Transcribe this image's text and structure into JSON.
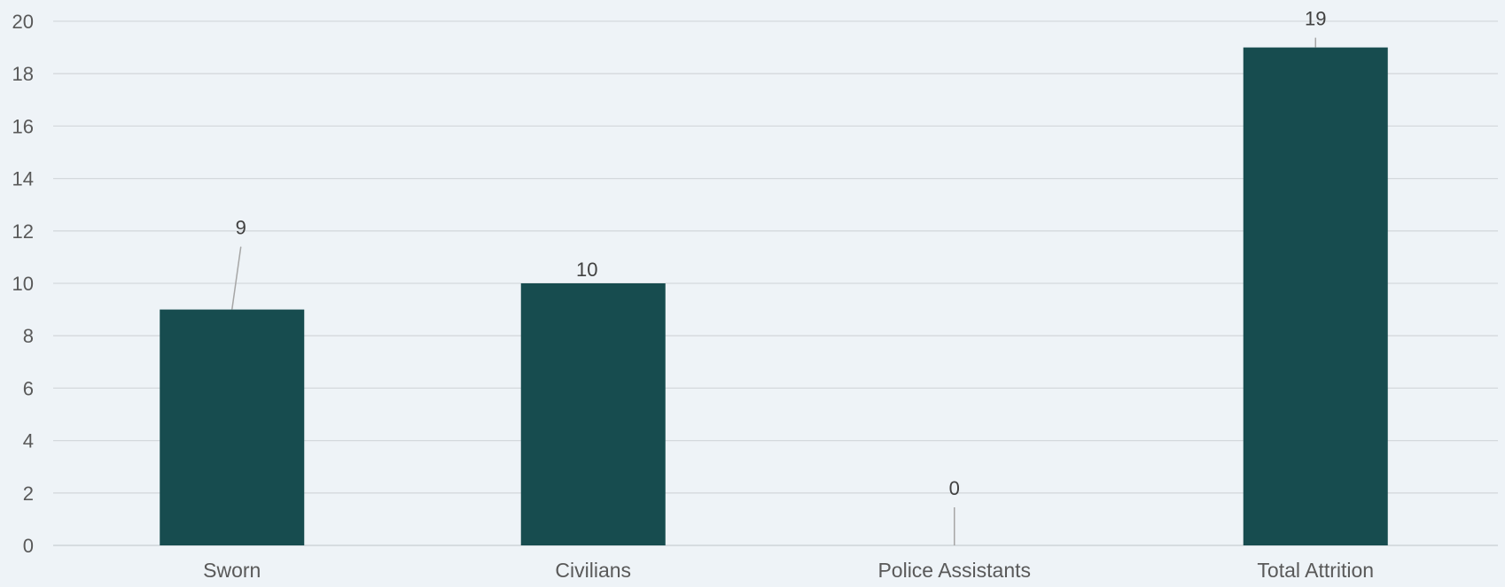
{
  "chart_data": {
    "type": "bar",
    "categories": [
      "Sworn",
      "Civilians",
      "Police Assistants",
      "Total Attrition"
    ],
    "values": [
      9,
      10,
      0,
      19
    ],
    "data_labels": [
      "9",
      "10",
      "0",
      "19"
    ],
    "title": "",
    "xlabel": "",
    "ylabel": "",
    "ylim": [
      0,
      20
    ],
    "y_ticks": [
      0,
      2,
      4,
      6,
      8,
      10,
      12,
      14,
      16,
      18,
      20
    ],
    "y_tick_labels": [
      "0",
      "2",
      "4",
      "6",
      "8",
      "10",
      "12",
      "14",
      "16",
      "18",
      "20"
    ],
    "grid": true,
    "legend": "none",
    "colors": {
      "bar": "#174c4f",
      "grid": "#d4d9dd",
      "axis_text": "#595959",
      "label_text": "#404040",
      "leader_line": "#a6a6a6",
      "background": "#eef3f7"
    }
  }
}
